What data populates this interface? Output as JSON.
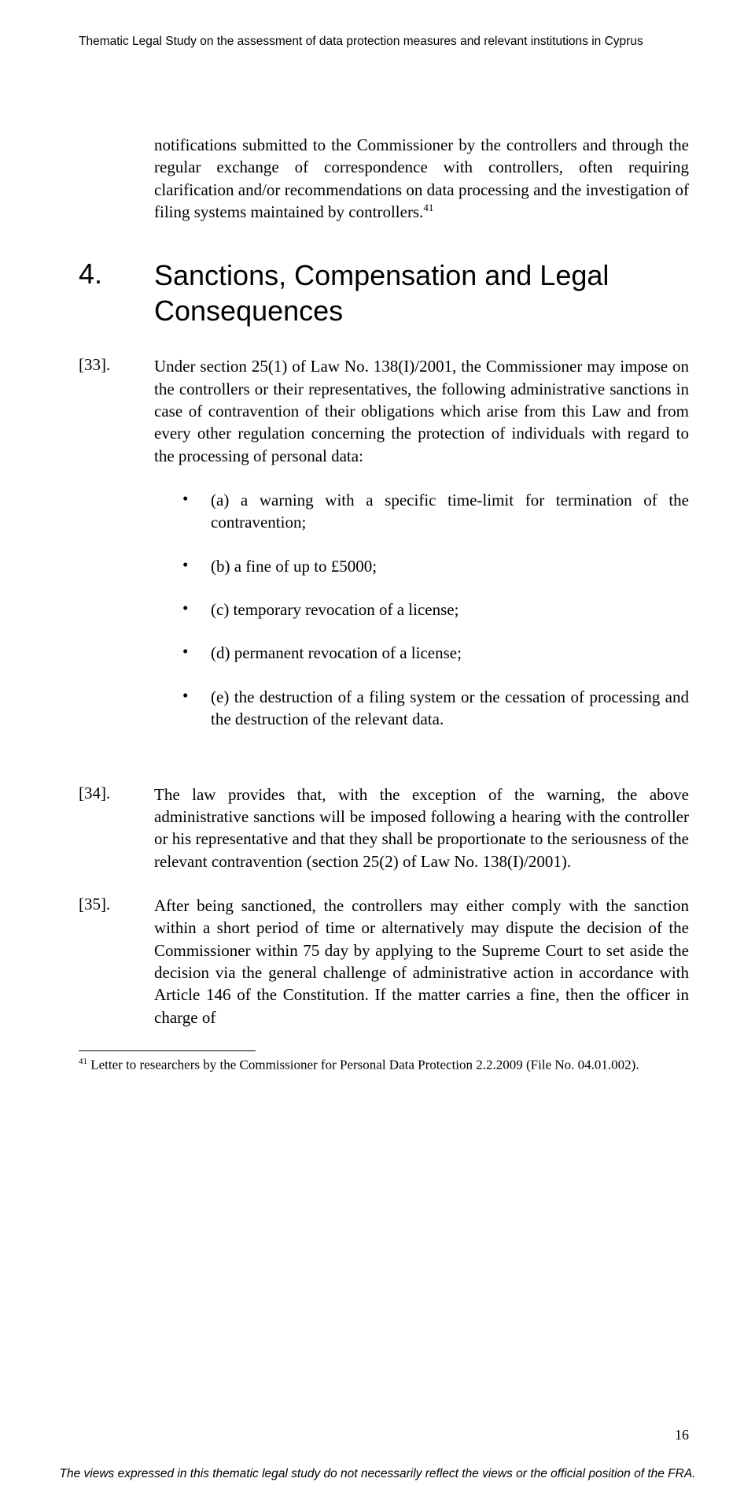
{
  "header": "Thematic Legal Study on the assessment of data protection measures and relevant institutions in Cyprus",
  "intro_para": "notifications submitted to the Commissioner by the controllers and through the regular exchange of correspondence with controllers, often requiring clarification and/or recommendations on data processing and the investigation of filing systems maintained by controllers.",
  "intro_sup": "41",
  "section": {
    "number": "4.",
    "title": "Sanctions, Compensation and Legal Consequences"
  },
  "paragraphs": [
    {
      "num": "[33].",
      "text": "Under section 25(1) of Law No. 138(I)/2001, the Commissioner may impose on the controllers or their representatives, the following administrative sanctions in case of contravention of their obligations which arise from this Law and from every other regulation concerning the protection of individuals with regard to the processing of personal data:"
    },
    {
      "num": "[34].",
      "text": "The law provides that, with the exception of the warning, the above administrative sanctions will be imposed following a hearing with the controller or his representative and that they shall be proportionate to the seriousness of the relevant contravention (section 25(2) of Law No. 138(I)/2001)."
    },
    {
      "num": "[35].",
      "text": "After being sanctioned, the controllers may either comply with the sanction within a short period of time or alternatively may dispute the decision of the Commissioner within 75 day by applying to the Supreme Court to set aside the decision via the general challenge of administrative action in accordance with Article 146 of the Constitution.  If the matter carries a fine, then the officer in charge of"
    }
  ],
  "bullets": [
    "(a) a warning with a specific time-limit for termination of the contravention;",
    "(b) a fine of up to £5000;",
    "(c) temporary revocation of a license;",
    "(d) permanent revocation of a license;",
    "(e) the destruction of a filing system or the cessation of processing and the destruction of the relevant data."
  ],
  "footnote": {
    "sup": "41",
    "text": " Letter to researchers by the Commissioner for Personal Data Protection 2.2.2009 (File No. 04.01.002)."
  },
  "page_number": "16",
  "footer": "The views expressed in this thematic legal study do not necessarily reflect the views or the official position of the FRA."
}
